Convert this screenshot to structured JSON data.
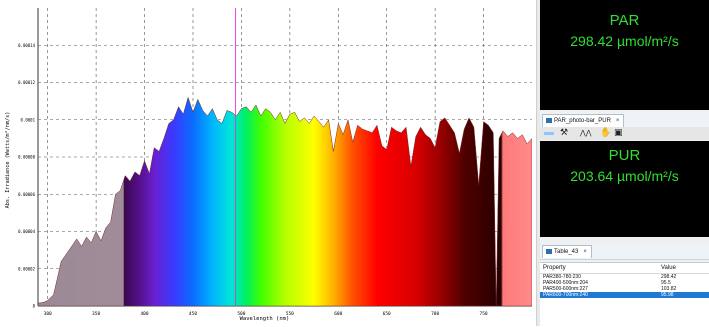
{
  "chart_data": {
    "type": "area",
    "xlabel": "Wavelength (nm)",
    "ylabel": "Abs. Irradiance (Watts/m²/nm/s)",
    "xlim": [
      290,
      800
    ],
    "ylim": [
      0,
      0.00016
    ],
    "x_ticks": [
      "300",
      "350",
      "400",
      "450",
      "500",
      "550",
      "600",
      "650",
      "700",
      "750"
    ],
    "y_ticks": [
      "0",
      "0.00002",
      "0.00004",
      "0.00006",
      "0.00008",
      "0.0001",
      "0.00012",
      "0.00014"
    ],
    "grid": true,
    "cursor_x": 494,
    "series": [
      {
        "x": [
          290,
          296,
          300,
          306,
          310,
          314,
          318,
          322,
          326,
          330,
          335,
          340,
          345,
          350,
          355,
          360,
          365,
          370,
          375,
          380,
          385,
          390,
          395,
          400,
          405,
          410,
          415,
          420,
          425,
          430,
          435,
          440,
          445,
          450,
          455,
          460,
          465,
          470,
          475,
          480,
          485,
          490,
          495,
          500,
          505,
          510,
          515,
          520,
          525,
          530,
          535,
          540,
          545,
          550,
          555,
          560,
          565,
          570,
          575,
          580,
          585,
          590,
          595,
          600,
          605,
          610,
          615,
          620,
          625,
          630,
          635,
          640,
          645,
          650,
          655,
          660,
          665,
          670,
          675,
          680,
          685,
          690,
          695,
          700,
          705,
          710,
          715,
          720,
          725,
          730,
          735,
          740,
          745,
          750,
          755,
          760,
          763,
          766,
          770,
          775,
          780,
          785,
          790,
          795,
          800
        ],
        "values": [
          1.5e-06,
          2e-06,
          3e-06,
          6e-06,
          1.5e-05,
          2.4e-05,
          2.7e-05,
          3e-05,
          3.3e-05,
          3.6e-05,
          3.2e-05,
          3.7e-05,
          3.4e-05,
          4e-05,
          3.5e-05,
          4.2e-05,
          4.5e-05,
          6e-05,
          6.2e-05,
          7e-05,
          6.7e-05,
          7.2e-05,
          7e-05,
          7.8e-05,
          7.1e-05,
          8.5e-05,
          8.3e-05,
          9e-05,
          9.8e-05,
          0.0001,
          0.000107,
          0.000103,
          0.000112,
          0.000104,
          0.000111,
          0.000105,
          0.000102,
          0.000106,
          0.0001,
          9.8e-05,
          0.000105,
          0.000104,
          0.000102,
          0.000106,
          0.000107,
          0.000104,
          0.000108,
          0.000102,
          0.000106,
          0.000104,
          0.0001,
          0.000104,
          9.8e-05,
          0.000103,
          0.000104,
          9.9e-05,
          0.000101,
          9.8e-05,
          0.000102,
          9.9e-05,
          9.6e-05,
          0.0001,
          8.3e-05,
          9.8e-05,
          9.2e-05,
          0.0001,
          8.8e-05,
          9.7e-05,
          9.5e-05,
          9.4e-05,
          9.3e-05,
          9.7e-05,
          8.6e-05,
          8.4e-05,
          9.6e-05,
          9.4e-05,
          9.3e-05,
          9.6e-05,
          7.5e-05,
          9.1e-05,
          9.6e-05,
          9.2e-05,
          9e-05,
          8.5e-05,
          9.9e-05,
          0.000101,
          9.7e-05,
          9.3e-05,
          8.2e-05,
          9.5e-05,
          0.000101,
          9.6e-05,
          6.5e-05,
          9.9e-05,
          9.7e-05,
          9.3e-05,
          0.0,
          9e-05,
          9.4e-05,
          9.1e-05,
          9.3e-05,
          9e-05,
          9.2e-05,
          8.7e-05,
          9e-05
        ]
      }
    ]
  },
  "par_panel": {
    "title": "PAR",
    "value": "298.42  µmol/m²/s"
  },
  "plot_tab": {
    "label": "PAR_photo-bar_PUR",
    "close": "×"
  },
  "toolbar_icons": [
    "tools-icon",
    "peaks-icon",
    "hand-icon",
    "image-icon"
  ],
  "toolbar_glyphs": [
    "⚒",
    "⋀⋀",
    "✋",
    "▣"
  ],
  "pur_panel": {
    "title": "PUR",
    "value": "203.64  µmol/m²/s"
  },
  "table_tab": {
    "label": "Table_43",
    "close": "×"
  },
  "table": {
    "headers": [
      "Property",
      "Value"
    ],
    "rows": [
      {
        "property": "PAR380-780:230",
        "value": "298.42"
      },
      {
        "property": "PAR400-500nm:204",
        "value": "95.5"
      },
      {
        "property": "PAR500-600nm:227",
        "value": "103.82"
      },
      {
        "property": "PAR600-700nm:240",
        "value": "95.98",
        "selected": true
      }
    ]
  },
  "colors": {
    "readout_bg": "#000000",
    "readout_text": "#33dd33",
    "selection": "#1e78d4",
    "cursor": "#dd33dd"
  }
}
